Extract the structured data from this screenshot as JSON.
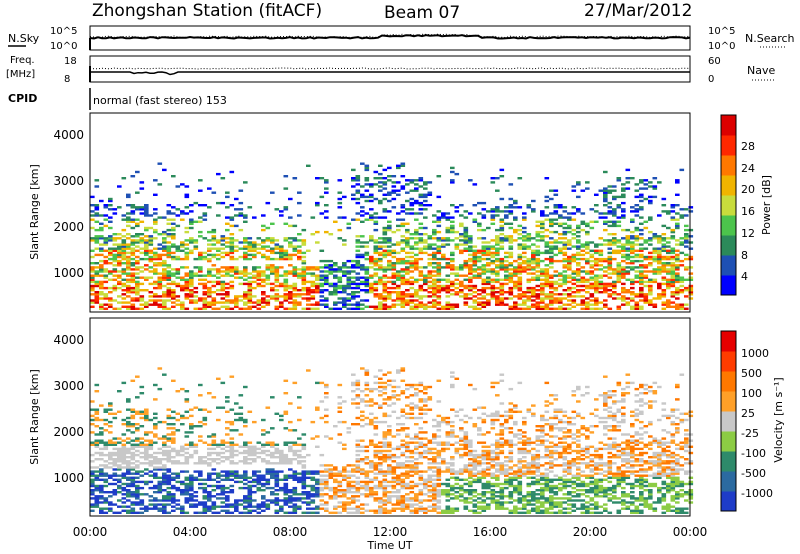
{
  "header": {
    "station": "Zhongshan Station (fitACF)",
    "beam": "Beam 07",
    "date": "27/Mar/2012"
  },
  "strip": {
    "nsky_label": "N.Sky",
    "nsky_ticks": [
      "10^5",
      "10^0"
    ],
    "nsearch_label": "N.Search",
    "nsearch_ticks": [
      "10^5",
      "10^0"
    ],
    "freq_label_1": "Freq.",
    "freq_label_2": "[MHz]",
    "freq_ticks": [
      "18",
      "8"
    ],
    "nave_label": "Nave",
    "nave_ticks": [
      "60",
      "0"
    ],
    "cpid_label": "CPID",
    "cpid_text": "normal (fast stereo) 153"
  },
  "chart_data": [
    {
      "type": "heatmap",
      "parameter": "power",
      "ylabel": "Slant Range [km]",
      "yticks": [
        "4000",
        "3000",
        "2000",
        "1000"
      ],
      "ylim": [
        180,
        4500
      ],
      "colorbar_label": "Power [dB]",
      "colorbar_ticks": [
        "28",
        "24",
        "20",
        "16",
        "12",
        "8",
        "4"
      ],
      "colorbar_colors": [
        "#0000ff",
        "#1e50b4",
        "#2b8a5a",
        "#4cc44c",
        "#c8dc3c",
        "#f0b400",
        "#ff7800",
        "#ff2800",
        "#dc0000"
      ]
    },
    {
      "type": "heatmap",
      "parameter": "velocity",
      "ylabel": "Slant Range [km]",
      "yticks": [
        "4000",
        "3000",
        "2000",
        "1000"
      ],
      "ylim": [
        180,
        4500
      ],
      "xlabel": "Time UT",
      "xticks": [
        "00:00",
        "04:00",
        "08:00",
        "12:00",
        "16:00",
        "20:00",
        "00:00"
      ],
      "colorbar_label": "Velocity [m s⁻¹]",
      "colorbar_ticks": [
        "1000",
        "500",
        "100",
        "25",
        "-25",
        "-100",
        "-500",
        "-1000"
      ],
      "colorbar_colors": [
        "#1e3cc8",
        "#2b6aa0",
        "#2e8a6a",
        "#8ccc44",
        "#c8c8c8",
        "#ffa028",
        "#ff7800",
        "#ff3c00",
        "#e60000"
      ]
    }
  ]
}
